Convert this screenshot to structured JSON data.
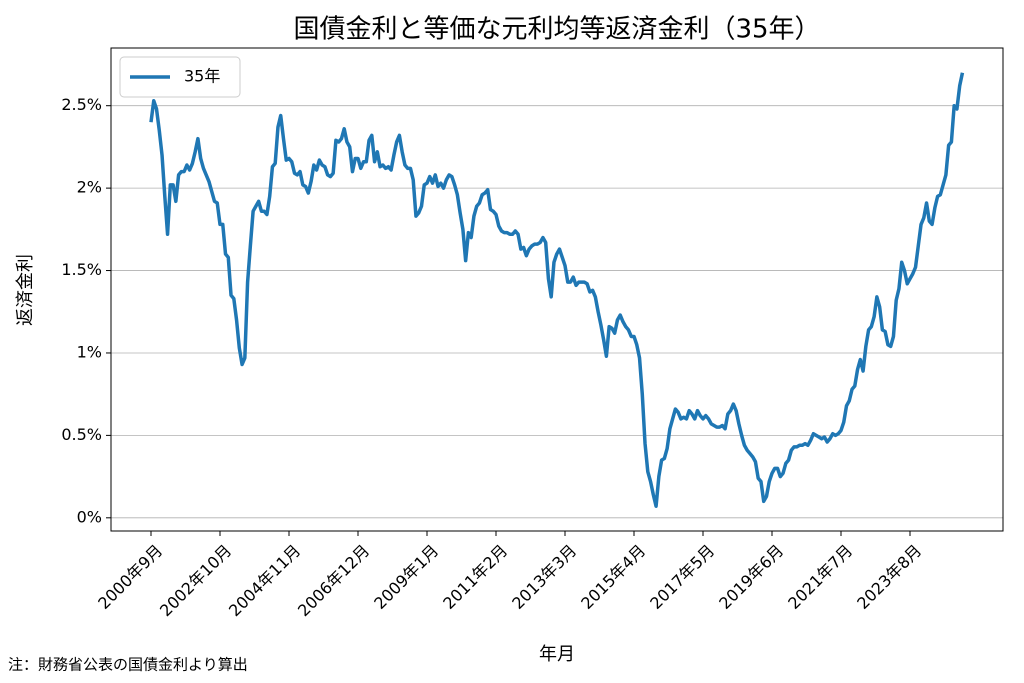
{
  "chart_data": {
    "type": "line",
    "title": "国債金利と等価な元利均等返済金利（35年）",
    "ylabel": "返済金利",
    "xlabel": "年月",
    "note": "注：財務省公表の国債金利より算出",
    "categories": [
      "2000年9月",
      null,
      null,
      null,
      null,
      null,
      null,
      null,
      null,
      null,
      null,
      null,
      null,
      null,
      null,
      null,
      null,
      null,
      null,
      null,
      null,
      null,
      null,
      null,
      null,
      "2002年10月",
      null,
      null,
      null,
      null,
      null,
      null,
      null,
      null,
      null,
      null,
      null,
      null,
      null,
      null,
      null,
      null,
      null,
      null,
      null,
      null,
      null,
      null,
      null,
      null,
      "2004年11月",
      null,
      null,
      null,
      null,
      null,
      null,
      null,
      null,
      null,
      null,
      null,
      null,
      null,
      null,
      null,
      null,
      null,
      null,
      null,
      null,
      null,
      null,
      null,
      null,
      "2006年12月",
      null,
      null,
      null,
      null,
      null,
      null,
      null,
      null,
      null,
      null,
      null,
      null,
      null,
      null,
      null,
      null,
      null,
      null,
      null,
      null,
      null,
      null,
      null,
      null,
      "2009年1月",
      null,
      null,
      null,
      null,
      null,
      null,
      null,
      null,
      null,
      null,
      null,
      null,
      null,
      null,
      null,
      null,
      null,
      null,
      null,
      null,
      null,
      null,
      null,
      null,
      "2011年2月",
      null,
      null,
      null,
      null,
      null,
      null,
      null,
      null,
      null,
      null,
      null,
      null,
      null,
      null,
      null,
      null,
      null,
      null,
      null,
      null,
      null,
      null,
      null,
      null,
      "2013年3月",
      null,
      null,
      null,
      null,
      null,
      null,
      null,
      null,
      null,
      null,
      null,
      null,
      null,
      null,
      null,
      null,
      null,
      null,
      null,
      null,
      null,
      null,
      null,
      null,
      "2015年4月",
      null,
      null,
      null,
      null,
      null,
      null,
      null,
      null,
      null,
      null,
      null,
      null,
      null,
      null,
      null,
      null,
      null,
      null,
      null,
      null,
      null,
      null,
      null,
      null,
      "2017年5月",
      null,
      null,
      null,
      null,
      null,
      null,
      null,
      null,
      null,
      null,
      null,
      null,
      null,
      null,
      null,
      null,
      null,
      null,
      null,
      null,
      null,
      null,
      null,
      null,
      "2019年6月",
      null,
      null,
      null,
      null,
      null,
      null,
      null,
      null,
      null,
      null,
      null,
      null,
      null,
      null,
      null,
      null,
      null,
      null,
      null,
      null,
      null,
      null,
      null,
      null,
      "2021年7月",
      null,
      null,
      null,
      null,
      null,
      null,
      null,
      null,
      null,
      null,
      null,
      null,
      null,
      null,
      null,
      null,
      null,
      null,
      null,
      null,
      null,
      null,
      null,
      null,
      "2023年8月",
      null,
      null,
      null,
      null,
      null,
      null,
      null,
      null,
      null,
      null,
      null,
      null,
      null,
      null,
      null,
      null,
      null,
      null,
      null
    ],
    "series": [
      {
        "name": "35年",
        "color": "#1f77b4",
        "values": [
          2.4,
          2.53,
          2.48,
          2.35,
          2.2,
          1.95,
          1.72,
          2.02,
          2.02,
          1.92,
          2.08,
          2.1,
          2.1,
          2.14,
          2.11,
          2.15,
          2.22,
          2.3,
          2.18,
          2.12,
          2.08,
          2.04,
          1.98,
          1.92,
          1.91,
          1.78,
          1.78,
          1.6,
          1.58,
          1.35,
          1.33,
          1.2,
          1.03,
          0.93,
          0.97,
          1.43,
          1.65,
          1.86,
          1.89,
          1.92,
          1.86,
          1.86,
          1.84,
          1.95,
          2.13,
          2.15,
          2.37,
          2.44,
          2.3,
          2.17,
          2.18,
          2.16,
          2.09,
          2.08,
          2.1,
          2.02,
          2.01,
          1.97,
          2.04,
          2.14,
          2.11,
          2.17,
          2.14,
          2.13,
          2.08,
          2.07,
          2.09,
          2.29,
          2.28,
          2.3,
          2.36,
          2.28,
          2.25,
          2.1,
          2.18,
          2.18,
          2.12,
          2.16,
          2.16,
          2.29,
          2.32,
          2.16,
          2.22,
          2.13,
          2.14,
          2.12,
          2.13,
          2.11,
          2.2,
          2.28,
          2.32,
          2.22,
          2.14,
          2.12,
          2.12,
          2.05,
          1.83,
          1.85,
          1.89,
          2.02,
          2.03,
          2.07,
          2.03,
          2.08,
          2.01,
          2.03,
          2.0,
          2.05,
          2.08,
          2.07,
          2.02,
          1.96,
          1.85,
          1.75,
          1.56,
          1.73,
          1.7,
          1.83,
          1.89,
          1.91,
          1.96,
          1.97,
          1.99,
          1.87,
          1.86,
          1.84,
          1.77,
          1.74,
          1.73,
          1.73,
          1.72,
          1.72,
          1.74,
          1.72,
          1.63,
          1.64,
          1.59,
          1.63,
          1.65,
          1.66,
          1.66,
          1.67,
          1.7,
          1.67,
          1.45,
          1.34,
          1.55,
          1.6,
          1.63,
          1.58,
          1.53,
          1.43,
          1.43,
          1.46,
          1.41,
          1.43,
          1.43,
          1.43,
          1.42,
          1.37,
          1.38,
          1.34,
          1.25,
          1.17,
          1.08,
          0.98,
          1.16,
          1.15,
          1.12,
          1.2,
          1.23,
          1.19,
          1.16,
          1.14,
          1.1,
          1.1,
          1.05,
          0.97,
          0.75,
          0.45,
          0.28,
          0.22,
          0.14,
          0.07,
          0.25,
          0.35,
          0.36,
          0.42,
          0.54,
          0.6,
          0.66,
          0.64,
          0.6,
          0.61,
          0.6,
          0.65,
          0.63,
          0.6,
          0.65,
          0.62,
          0.6,
          0.62,
          0.6,
          0.57,
          0.56,
          0.55,
          0.55,
          0.56,
          0.54,
          0.63,
          0.65,
          0.69,
          0.65,
          0.57,
          0.5,
          0.44,
          0.41,
          0.39,
          0.37,
          0.34,
          0.24,
          0.22,
          0.1,
          0.13,
          0.22,
          0.27,
          0.3,
          0.3,
          0.25,
          0.27,
          0.33,
          0.35,
          0.41,
          0.43,
          0.43,
          0.44,
          0.44,
          0.45,
          0.44,
          0.47,
          0.51,
          0.5,
          0.49,
          0.48,
          0.49,
          0.46,
          0.48,
          0.51,
          0.5,
          0.51,
          0.53,
          0.58,
          0.68,
          0.71,
          0.78,
          0.8,
          0.9,
          0.96,
          0.89,
          1.04,
          1.14,
          1.16,
          1.22,
          1.34,
          1.28,
          1.14,
          1.13,
          1.05,
          1.04,
          1.1,
          1.32,
          1.39,
          1.55,
          1.5,
          1.42,
          1.45,
          1.48,
          1.52,
          1.65,
          1.78,
          1.82,
          1.91,
          1.8,
          1.78,
          1.88,
          1.95,
          1.96,
          2.02,
          2.08,
          2.26,
          2.28,
          2.5,
          2.48,
          2.62,
          2.7
        ]
      }
    ],
    "ylim": [
      -0.08,
      2.85
    ],
    "yticks": [
      {
        "value": 0,
        "label": "0%"
      },
      {
        "value": 0.5,
        "label": "0.5%"
      },
      {
        "value": 1,
        "label": "1%"
      },
      {
        "value": 1.5,
        "label": "1.5%"
      },
      {
        "value": 2,
        "label": "2%"
      },
      {
        "value": 2.5,
        "label": "2.5%"
      }
    ],
    "grid": true,
    "legend": "upper left"
  }
}
